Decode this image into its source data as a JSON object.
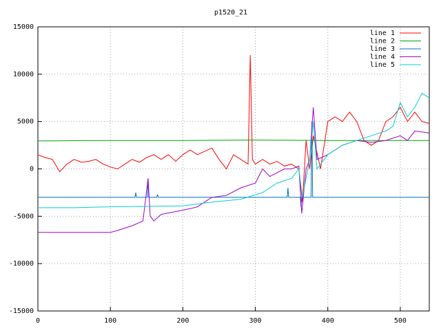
{
  "chart_data": {
    "type": "line",
    "title": "p1520_21",
    "xlim": [
      0,
      540
    ],
    "xticks": [
      0,
      100,
      200,
      300,
      400,
      500
    ],
    "ylim": [
      -15000,
      15000
    ],
    "yticks": [
      -15000,
      -10000,
      -5000,
      0,
      5000,
      10000,
      15000
    ],
    "grid": true,
    "legend": "top-right",
    "series": [
      {
        "name": "line 1",
        "color": "#ff0000",
        "x": [
          0,
          10,
          20,
          30,
          40,
          50,
          60,
          70,
          80,
          90,
          100,
          110,
          120,
          130,
          140,
          150,
          160,
          170,
          180,
          190,
          200,
          210,
          220,
          240,
          250,
          260,
          270,
          280,
          290,
          293,
          296,
          300,
          310,
          320,
          330,
          340,
          350,
          360,
          365,
          370,
          375,
          380,
          390,
          400,
          410,
          420,
          430,
          440,
          450,
          460,
          470,
          480,
          490,
          500,
          510,
          520,
          530,
          540
        ],
        "values": [
          1500,
          1200,
          1000,
          -300,
          500,
          1000,
          700,
          800,
          1000,
          500,
          200,
          0,
          500,
          1000,
          700,
          1200,
          1500,
          1000,
          1500,
          800,
          1500,
          2000,
          1500,
          2200,
          1000,
          0,
          1500,
          1000,
          500,
          12000,
          1000,
          500,
          1000,
          500,
          800,
          300,
          500,
          0,
          -3500,
          3000,
          0,
          3500,
          0,
          5000,
          5500,
          5000,
          6000,
          5000,
          3000,
          2500,
          3000,
          5000,
          5500,
          6500,
          5000,
          6000,
          5000,
          4800
        ]
      },
      {
        "name": "line 2",
        "color": "#00a000",
        "x": [
          0,
          100,
          200,
          300,
          400,
          500,
          540
        ],
        "values": [
          2950,
          3000,
          3000,
          3050,
          3000,
          3000,
          3000
        ]
      },
      {
        "name": "line 3",
        "color": "#0070c0",
        "x": [
          0,
          134,
          135,
          136,
          151,
          152,
          153,
          164,
          165,
          166,
          300,
          344,
          345,
          346,
          362,
          363,
          364,
          377,
          378,
          379,
          540
        ],
        "values": [
          -3000,
          -3000,
          -2500,
          -3000,
          -3000,
          -1000,
          -3000,
          -3000,
          -2700,
          -3000,
          -3000,
          -3000,
          -2000,
          -3000,
          -3000,
          -4000,
          -3000,
          -3000,
          5000,
          -3000,
          -3000
        ]
      },
      {
        "name": "line 4",
        "color": "#a000d0",
        "x": [
          0,
          100,
          110,
          130,
          145,
          152,
          155,
          160,
          170,
          190,
          210,
          220,
          240,
          260,
          280,
          300,
          310,
          320,
          340,
          350,
          360,
          364,
          370,
          375,
          380,
          385,
          400,
          420,
          440,
          460,
          480,
          500,
          510,
          520,
          540
        ],
        "values": [
          -6700,
          -6700,
          -6500,
          -6000,
          -5500,
          -1000,
          -5000,
          -5500,
          -4800,
          -4500,
          -4200,
          -4000,
          -3000,
          -2800,
          -2000,
          -1500,
          0,
          -800,
          0,
          0,
          300,
          -4700,
          0,
          1000,
          6500,
          1000,
          1500,
          2500,
          3000,
          2800,
          3000,
          3500,
          3000,
          4000,
          3800
        ]
      },
      {
        "name": "line 5",
        "color": "#00d0d0",
        "x": [
          0,
          50,
          100,
          200,
          240,
          280,
          310,
          330,
          350,
          360,
          365,
          375,
          380,
          385,
          400,
          420,
          440,
          460,
          480,
          490,
          500,
          510,
          520,
          530,
          540
        ],
        "values": [
          -4100,
          -4100,
          -4000,
          -3900,
          -3500,
          -3200,
          -2500,
          -1500,
          -1000,
          0,
          -3000,
          1000,
          5000,
          0,
          1500,
          2500,
          3000,
          3500,
          4000,
          4500,
          7000,
          5500,
          6500,
          8000,
          7500
        ]
      }
    ]
  }
}
